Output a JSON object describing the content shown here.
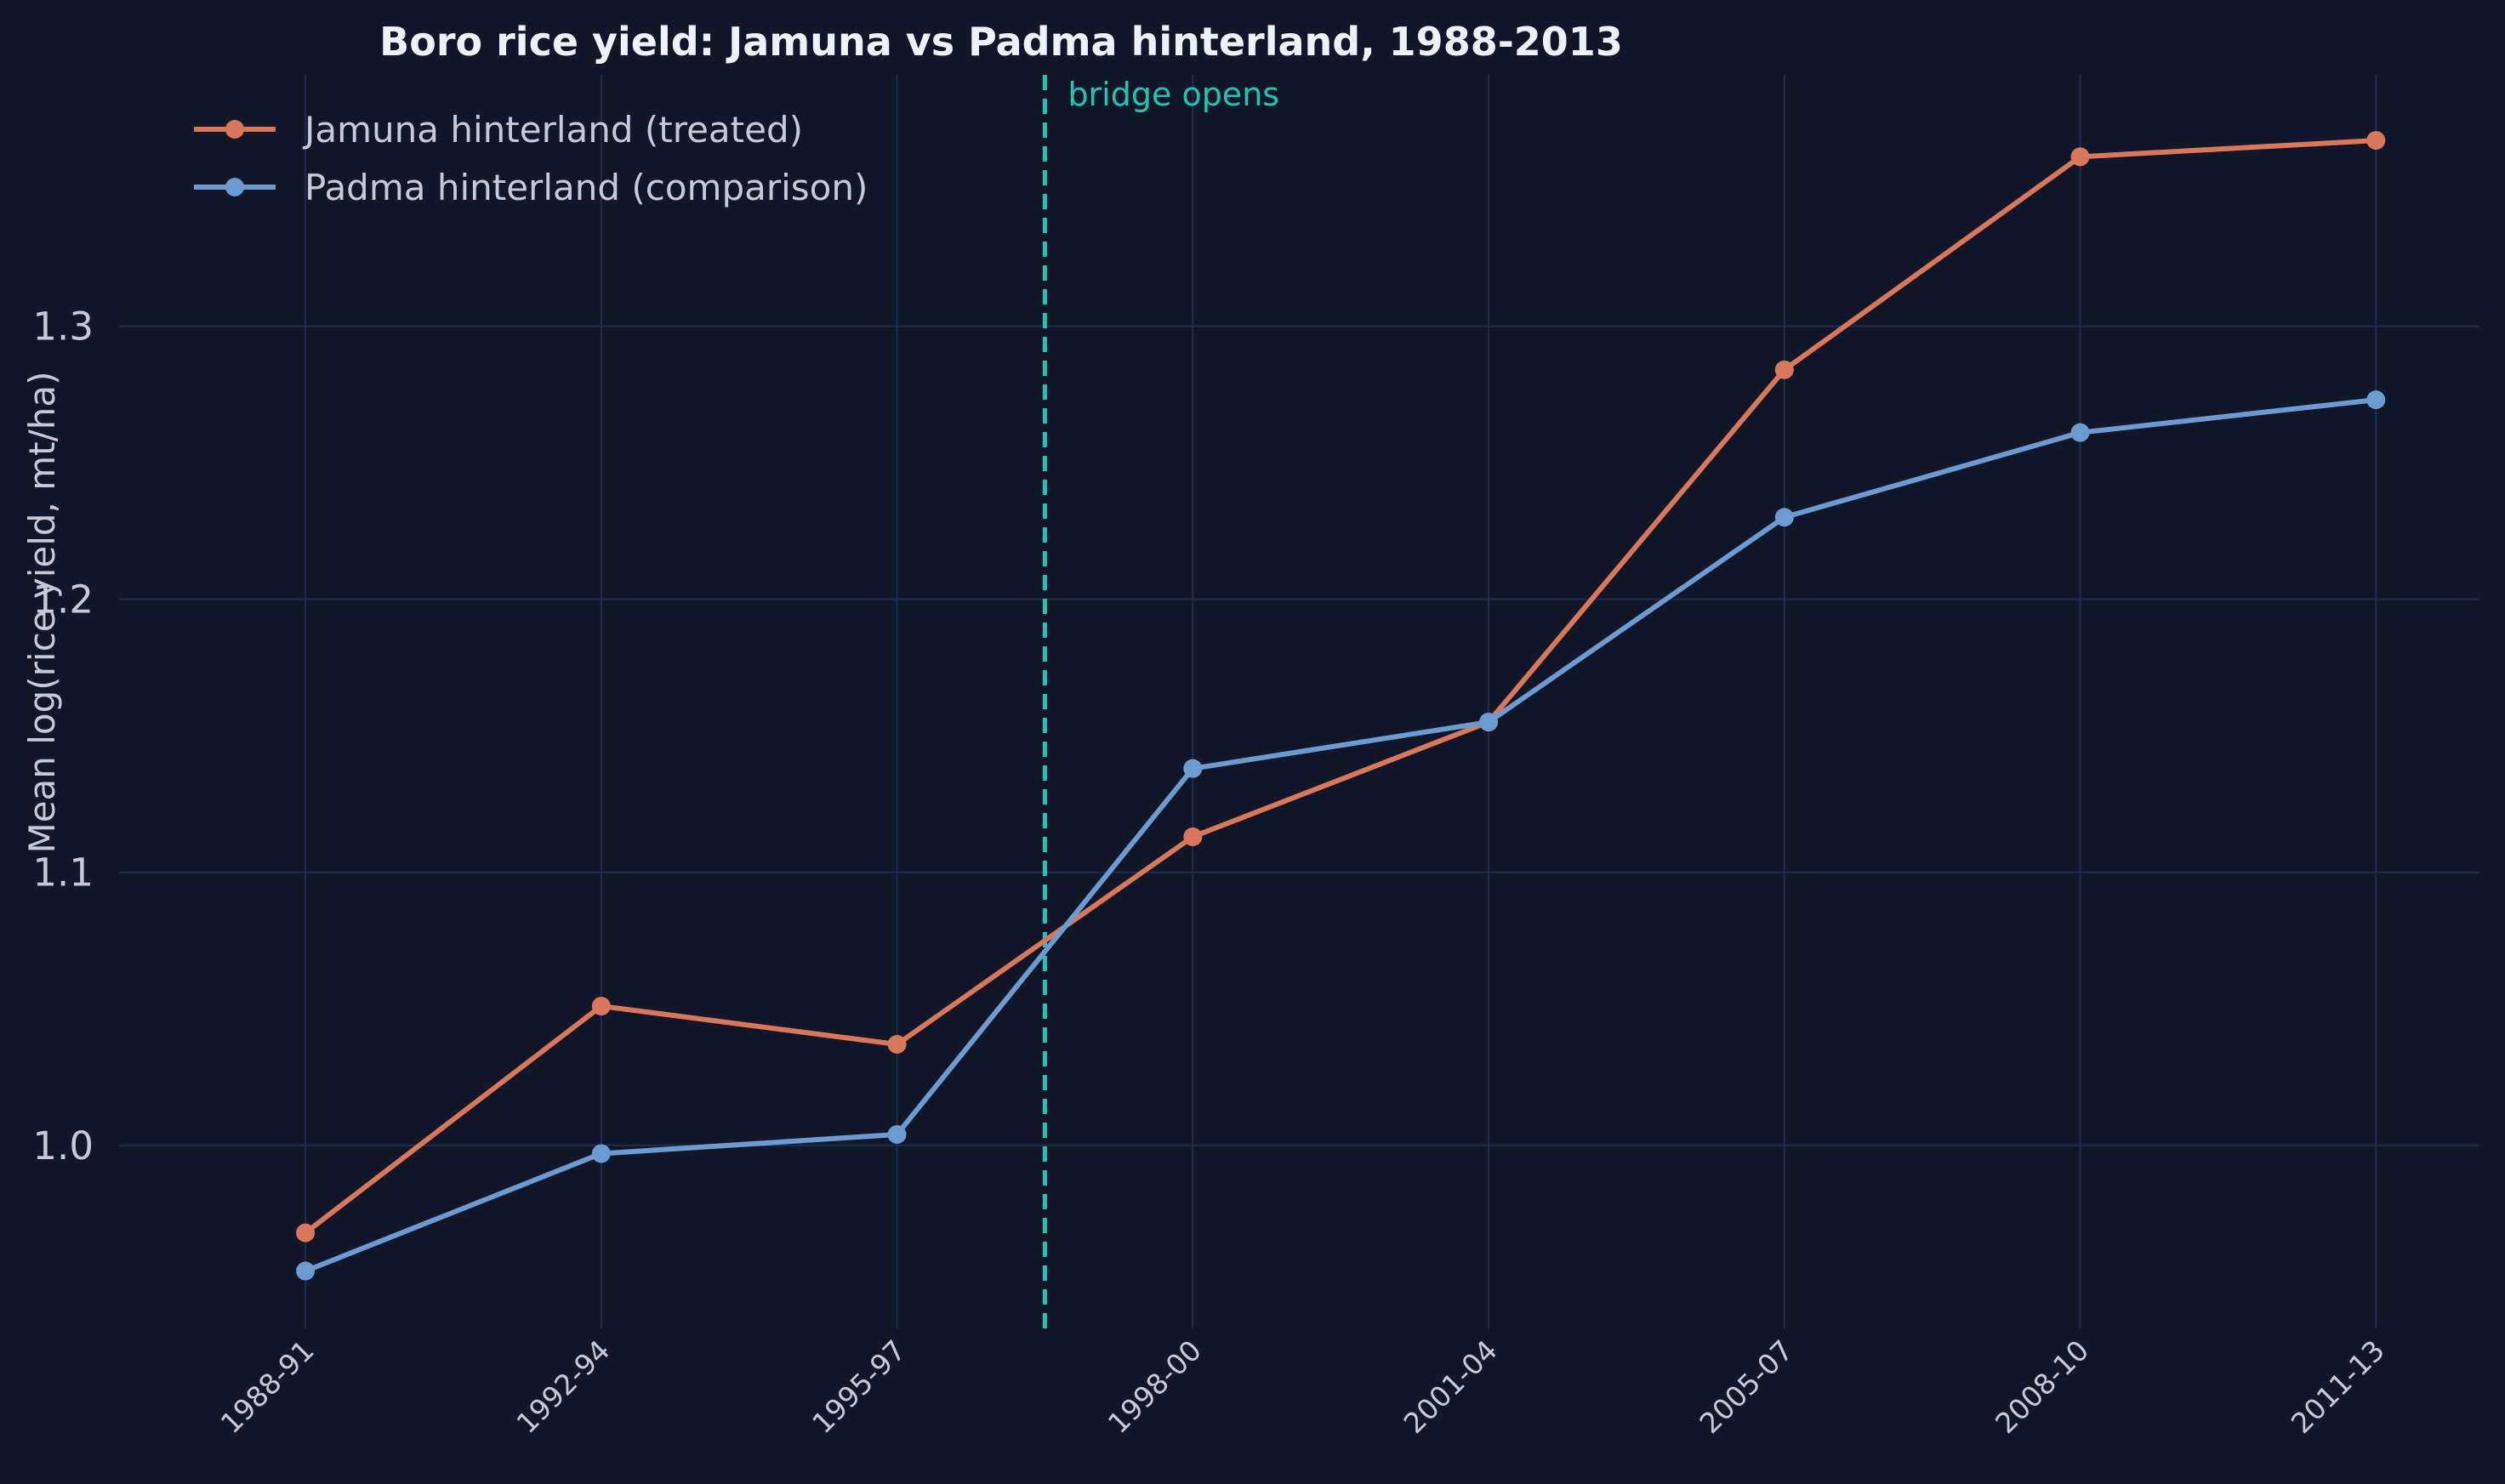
{
  "chart_data": {
    "type": "line",
    "title": "Boro rice yield: Jamuna vs Padma hinterland, 1988-2013",
    "xlabel": "",
    "ylabel": "Mean log(rice yield, mt/ha)",
    "categories": [
      "1988-91",
      "1992-94",
      "1995-97",
      "1998-00",
      "2001-04",
      "2005-07",
      "2008-10",
      "2011-13"
    ],
    "series": [
      {
        "name": "Jamuna hinterland (treated)",
        "color": "#d9775a",
        "values": [
          0.968,
          1.051,
          1.037,
          1.113,
          1.155,
          1.284,
          1.362,
          1.368
        ]
      },
      {
        "name": "Padma hinterland (comparison)",
        "color": "#6b9bd1",
        "values": [
          0.954,
          0.997,
          1.004,
          1.138,
          1.155,
          1.23,
          1.261,
          1.273
        ]
      }
    ],
    "yticks": [
      1.0,
      1.1,
      1.2,
      1.3
    ],
    "ylim": [
      0.933,
      1.392
    ],
    "xlim": [
      -0.63,
      7.35
    ],
    "grid": true,
    "legend": "top-left",
    "annotation": {
      "text": "bridge opens",
      "x": 2.5,
      "color": "#1fc4b8",
      "style": "dashed vertical line"
    },
    "colors": {
      "background": "#111729",
      "grid": "#1f2c4d",
      "text": "#c5cad8",
      "title": "#eef1f7"
    }
  }
}
